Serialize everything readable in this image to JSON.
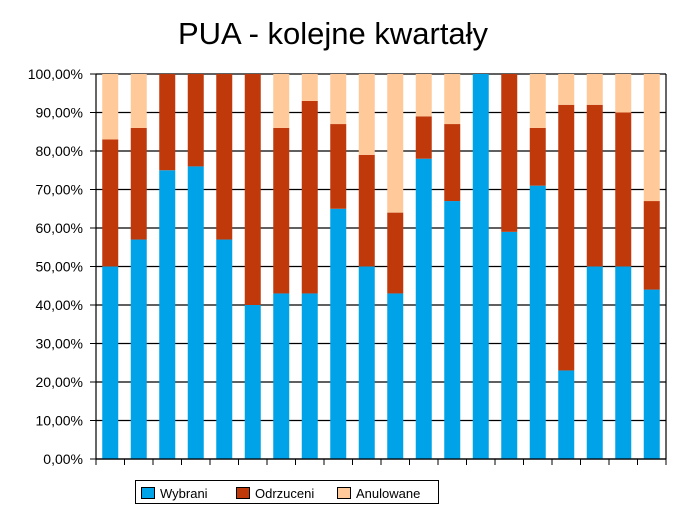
{
  "chart_data": {
    "type": "bar",
    "stacked": true,
    "title": "PUA - kolejne kwartały",
    "xlabel": "",
    "ylabel": "",
    "ylim": [
      0,
      100
    ],
    "y_ticks": [
      "0,00%",
      "10,00%",
      "20,00%",
      "30,00%",
      "40,00%",
      "50,00%",
      "60,00%",
      "70,00%",
      "80,00%",
      "90,00%",
      "100,00%"
    ],
    "grid": true,
    "legend_position": "bottom-left",
    "categories": [
      "",
      "",
      "",
      "",
      "",
      "",
      "",
      "",
      "",
      "",
      "",
      "",
      "",
      "",
      "",
      "",
      "",
      "",
      "",
      ""
    ],
    "series": [
      {
        "name": "Wybrani",
        "color": "#00a2e8",
        "values": [
          50,
          57,
          75,
          76,
          57,
          40,
          43,
          43,
          65,
          50,
          43,
          78,
          67,
          100,
          59,
          71,
          23,
          50,
          50,
          44
        ]
      },
      {
        "name": "Odrzuceni",
        "color": "#c0390b",
        "values": [
          33,
          29,
          25,
          24,
          43,
          60,
          43,
          50,
          22,
          29,
          21,
          11,
          20,
          0,
          41,
          15,
          69,
          42,
          40,
          23
        ]
      },
      {
        "name": "Anulowane",
        "color": "#ffc999",
        "values": [
          17,
          14,
          0,
          0,
          0,
          0,
          14,
          7,
          13,
          21,
          36,
          11,
          13,
          0,
          0,
          14,
          8,
          8,
          10,
          33
        ]
      }
    ]
  }
}
